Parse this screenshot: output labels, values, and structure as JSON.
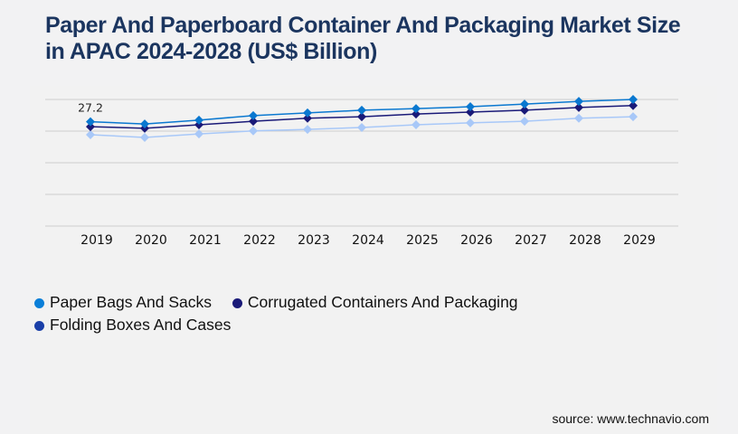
{
  "header": {
    "title": "Paper And Paperboard Container And Packaging Market Size in APAC 2024-2028 (US$ Billion)"
  },
  "chart_data": {
    "type": "line",
    "title": "Paper And Paperboard Container And Packaging Market Size in APAC 2024-2028 (US$ Billion)",
    "xlabel": "",
    "ylabel": "",
    "categories": [
      "2019",
      "2020",
      "2021",
      "2022",
      "2023",
      "2024",
      "2025",
      "2026",
      "2027",
      "2028",
      "2029"
    ],
    "ylim": [
      0,
      33
    ],
    "gridlines": [
      0,
      8.25,
      16.5,
      24.75,
      33
    ],
    "grid": true,
    "y_tick_labels_visible": false,
    "legend_position": "bottom-left",
    "series": [
      {
        "name": "Paper Bags And Sacks",
        "color": "#0a78d0",
        "legend_color": "#0a7fd8",
        "values": [
          27.2,
          26.6,
          27.6,
          28.8,
          29.5,
          30.2,
          30.6,
          31.1,
          31.8,
          32.5,
          33.0
        ]
      },
      {
        "name": "Corrugated Containers And Packaging",
        "color": "#1a1a78",
        "legend_color": "#1a1a78",
        "values": [
          25.9,
          25.5,
          26.4,
          27.3,
          28.1,
          28.5,
          29.2,
          29.7,
          30.2,
          30.9,
          31.4
        ]
      },
      {
        "name": "Folding Boxes And Cases",
        "color": "#a8c8f8",
        "legend_color": "#1a3fa8",
        "values": [
          23.8,
          23.1,
          24.0,
          24.8,
          25.2,
          25.7,
          26.4,
          26.9,
          27.3,
          28.1,
          28.5
        ]
      }
    ],
    "annotations": [
      {
        "series": 0,
        "index": 0,
        "text": "27.2"
      }
    ]
  },
  "legend": {
    "items": [
      {
        "label": "Paper Bags And Sacks",
        "color": "#0a7fd8"
      },
      {
        "label": "Corrugated Containers And Packaging",
        "color": "#1a1a78"
      },
      {
        "label": "Folding Boxes And Cases",
        "color": "#1a3fa8"
      }
    ]
  },
  "footer": {
    "source": "source: www.technavio.com"
  }
}
